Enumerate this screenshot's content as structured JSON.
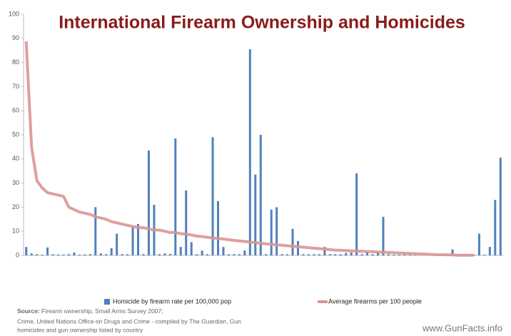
{
  "chart_data": {
    "type": "bar",
    "title": "International Firearm Ownership and Homicides",
    "categories": [
      null,
      null,
      null,
      null,
      null,
      null,
      null,
      null,
      null,
      null,
      null,
      null,
      null,
      null,
      null,
      null,
      null,
      null,
      null,
      null,
      null,
      null,
      null,
      null,
      null,
      null,
      null,
      null,
      null,
      null,
      null,
      null,
      null,
      null,
      null,
      null,
      null,
      null,
      null,
      null,
      null,
      null,
      null,
      null,
      null,
      null,
      null,
      null,
      null,
      null,
      null,
      null,
      null,
      null,
      null,
      null,
      null,
      null,
      null,
      null,
      null,
      null,
      null,
      null,
      null,
      null,
      null,
      null,
      null,
      null,
      null,
      null,
      null,
      null,
      null,
      null,
      null,
      null,
      null,
      null,
      null,
      null,
      null,
      null,
      null,
      null,
      null,
      null,
      null,
      null
    ],
    "series": [
      {
        "name": "Homicide by firearm rate per 100,000 pop",
        "type": "bar",
        "color": "#4f81bd",
        "values": [
          3.5,
          0.8,
          0.5,
          0.3,
          3.3,
          0.5,
          0.4,
          0.3,
          0.5,
          1.2,
          0.3,
          0.4,
          0.5,
          20,
          0.8,
          0.5,
          3,
          9,
          0.5,
          0.5,
          12,
          13,
          0.5,
          43.5,
          21,
          0.5,
          0.8,
          0.6,
          48.5,
          3.5,
          27,
          5.5,
          0.5,
          2,
          0.5,
          49,
          22.5,
          3.5,
          0.5,
          0.5,
          0.5,
          2,
          85.5,
          33.5,
          50,
          0.5,
          19,
          20,
          0.5,
          0.5,
          11,
          6,
          0.5,
          0.5,
          0.5,
          0.5,
          3.5,
          0.5,
          0.5,
          0.5,
          1,
          1.2,
          34,
          0.5,
          1.5,
          0.5,
          1.5,
          16,
          0.5,
          0.3,
          0.3,
          0.3,
          0.3,
          0.3,
          0.3,
          0.3,
          0.3,
          0.3,
          0.3,
          0.3,
          2.5,
          0.5,
          0.3,
          0.3,
          0.3,
          9,
          0.3,
          3.5,
          23,
          40.5
        ]
      },
      {
        "name": "Average firearms per 100 people",
        "type": "line",
        "color": "#d99694",
        "values": [
          88.8,
          45,
          31,
          28,
          26,
          25.5,
          25,
          24.5,
          20,
          19,
          18,
          17.5,
          17,
          16,
          15.5,
          15,
          14,
          13.5,
          13,
          12.5,
          12,
          11.5,
          11.5,
          11,
          10.5,
          10.5,
          10,
          9.5,
          9.5,
          9,
          8.8,
          8.5,
          8,
          7.8,
          7.5,
          7.2,
          7,
          6.8,
          6.5,
          6.2,
          6,
          5.8,
          5.5,
          5.3,
          5,
          4.8,
          4.6,
          4.4,
          4.2,
          4,
          3.8,
          3.6,
          3.4,
          3.2,
          3,
          2.8,
          2.6,
          2.4,
          2.2,
          2.1,
          2,
          1.9,
          1.8,
          1.7,
          1.6,
          1.5,
          1.4,
          1.3,
          1.2,
          1.1,
          1,
          0.9,
          0.8,
          0.7,
          0.6,
          0.5,
          0.4,
          0.3,
          0.3,
          0.2,
          0.2,
          0.1,
          0.1,
          0.1,
          0.1,
          null,
          null,
          null,
          null,
          null
        ]
      }
    ],
    "ylim": [
      0,
      100
    ],
    "yticks": [
      0,
      10,
      20,
      30,
      40,
      50,
      60,
      70,
      80,
      90,
      100
    ],
    "grid": false,
    "source_label": "Source:",
    "source_lines": [
      "Firearm ownership, Small Arms Survey 2007;",
      "Crime, United Nations Office on Drugs and Crime - compiled by The Guardian, Gun",
      "homicides and gun ownership listed by country"
    ],
    "website": "www.GunFacts.info"
  }
}
